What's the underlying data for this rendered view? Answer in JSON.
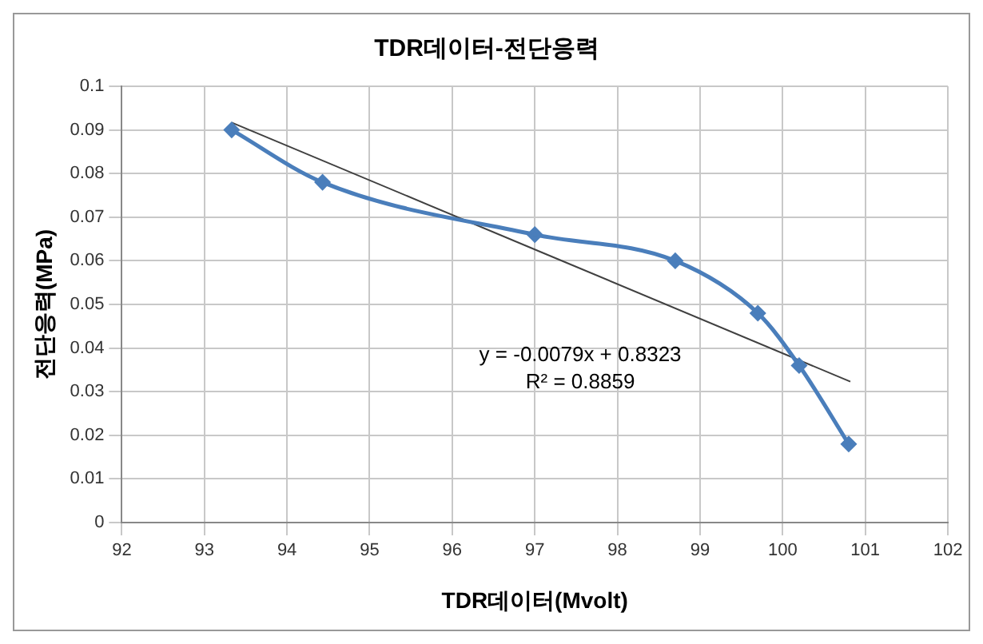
{
  "chart_data": {
    "type": "line",
    "title": "TDR데이터-전단응력",
    "xlabel": "TDR데이터(Mvolt)",
    "ylabel": "전단응력(MPa)",
    "xlim": [
      92,
      102
    ],
    "xticks": [
      92,
      93,
      94,
      95,
      96,
      97,
      98,
      99,
      100,
      101,
      102
    ],
    "ylim": [
      0,
      0.1
    ],
    "yticks": [
      0,
      0.01,
      0.02,
      0.03,
      0.04,
      0.05,
      0.06,
      0.07,
      0.08,
      0.09,
      0.1
    ],
    "grid": true,
    "legend": false,
    "marker": "diamond",
    "series": [
      {
        "type": "line",
        "color": "#4a7ebb",
        "x": [
          93.33,
          94.43,
          97.0,
          98.7,
          99.7,
          100.2,
          100.8
        ],
        "values": [
          0.09,
          0.078,
          0.066,
          0.06,
          0.048,
          0.036,
          0.018
        ]
      },
      {
        "type": "line",
        "color": "#404040",
        "marker": "none",
        "x": [
          93.33,
          100.82
        ],
        "values": [
          0.0917,
          0.0323
        ]
      }
    ],
    "annotations": [
      "y = -0.0079x + 0.8323",
      "R² = 0.8859"
    ]
  }
}
